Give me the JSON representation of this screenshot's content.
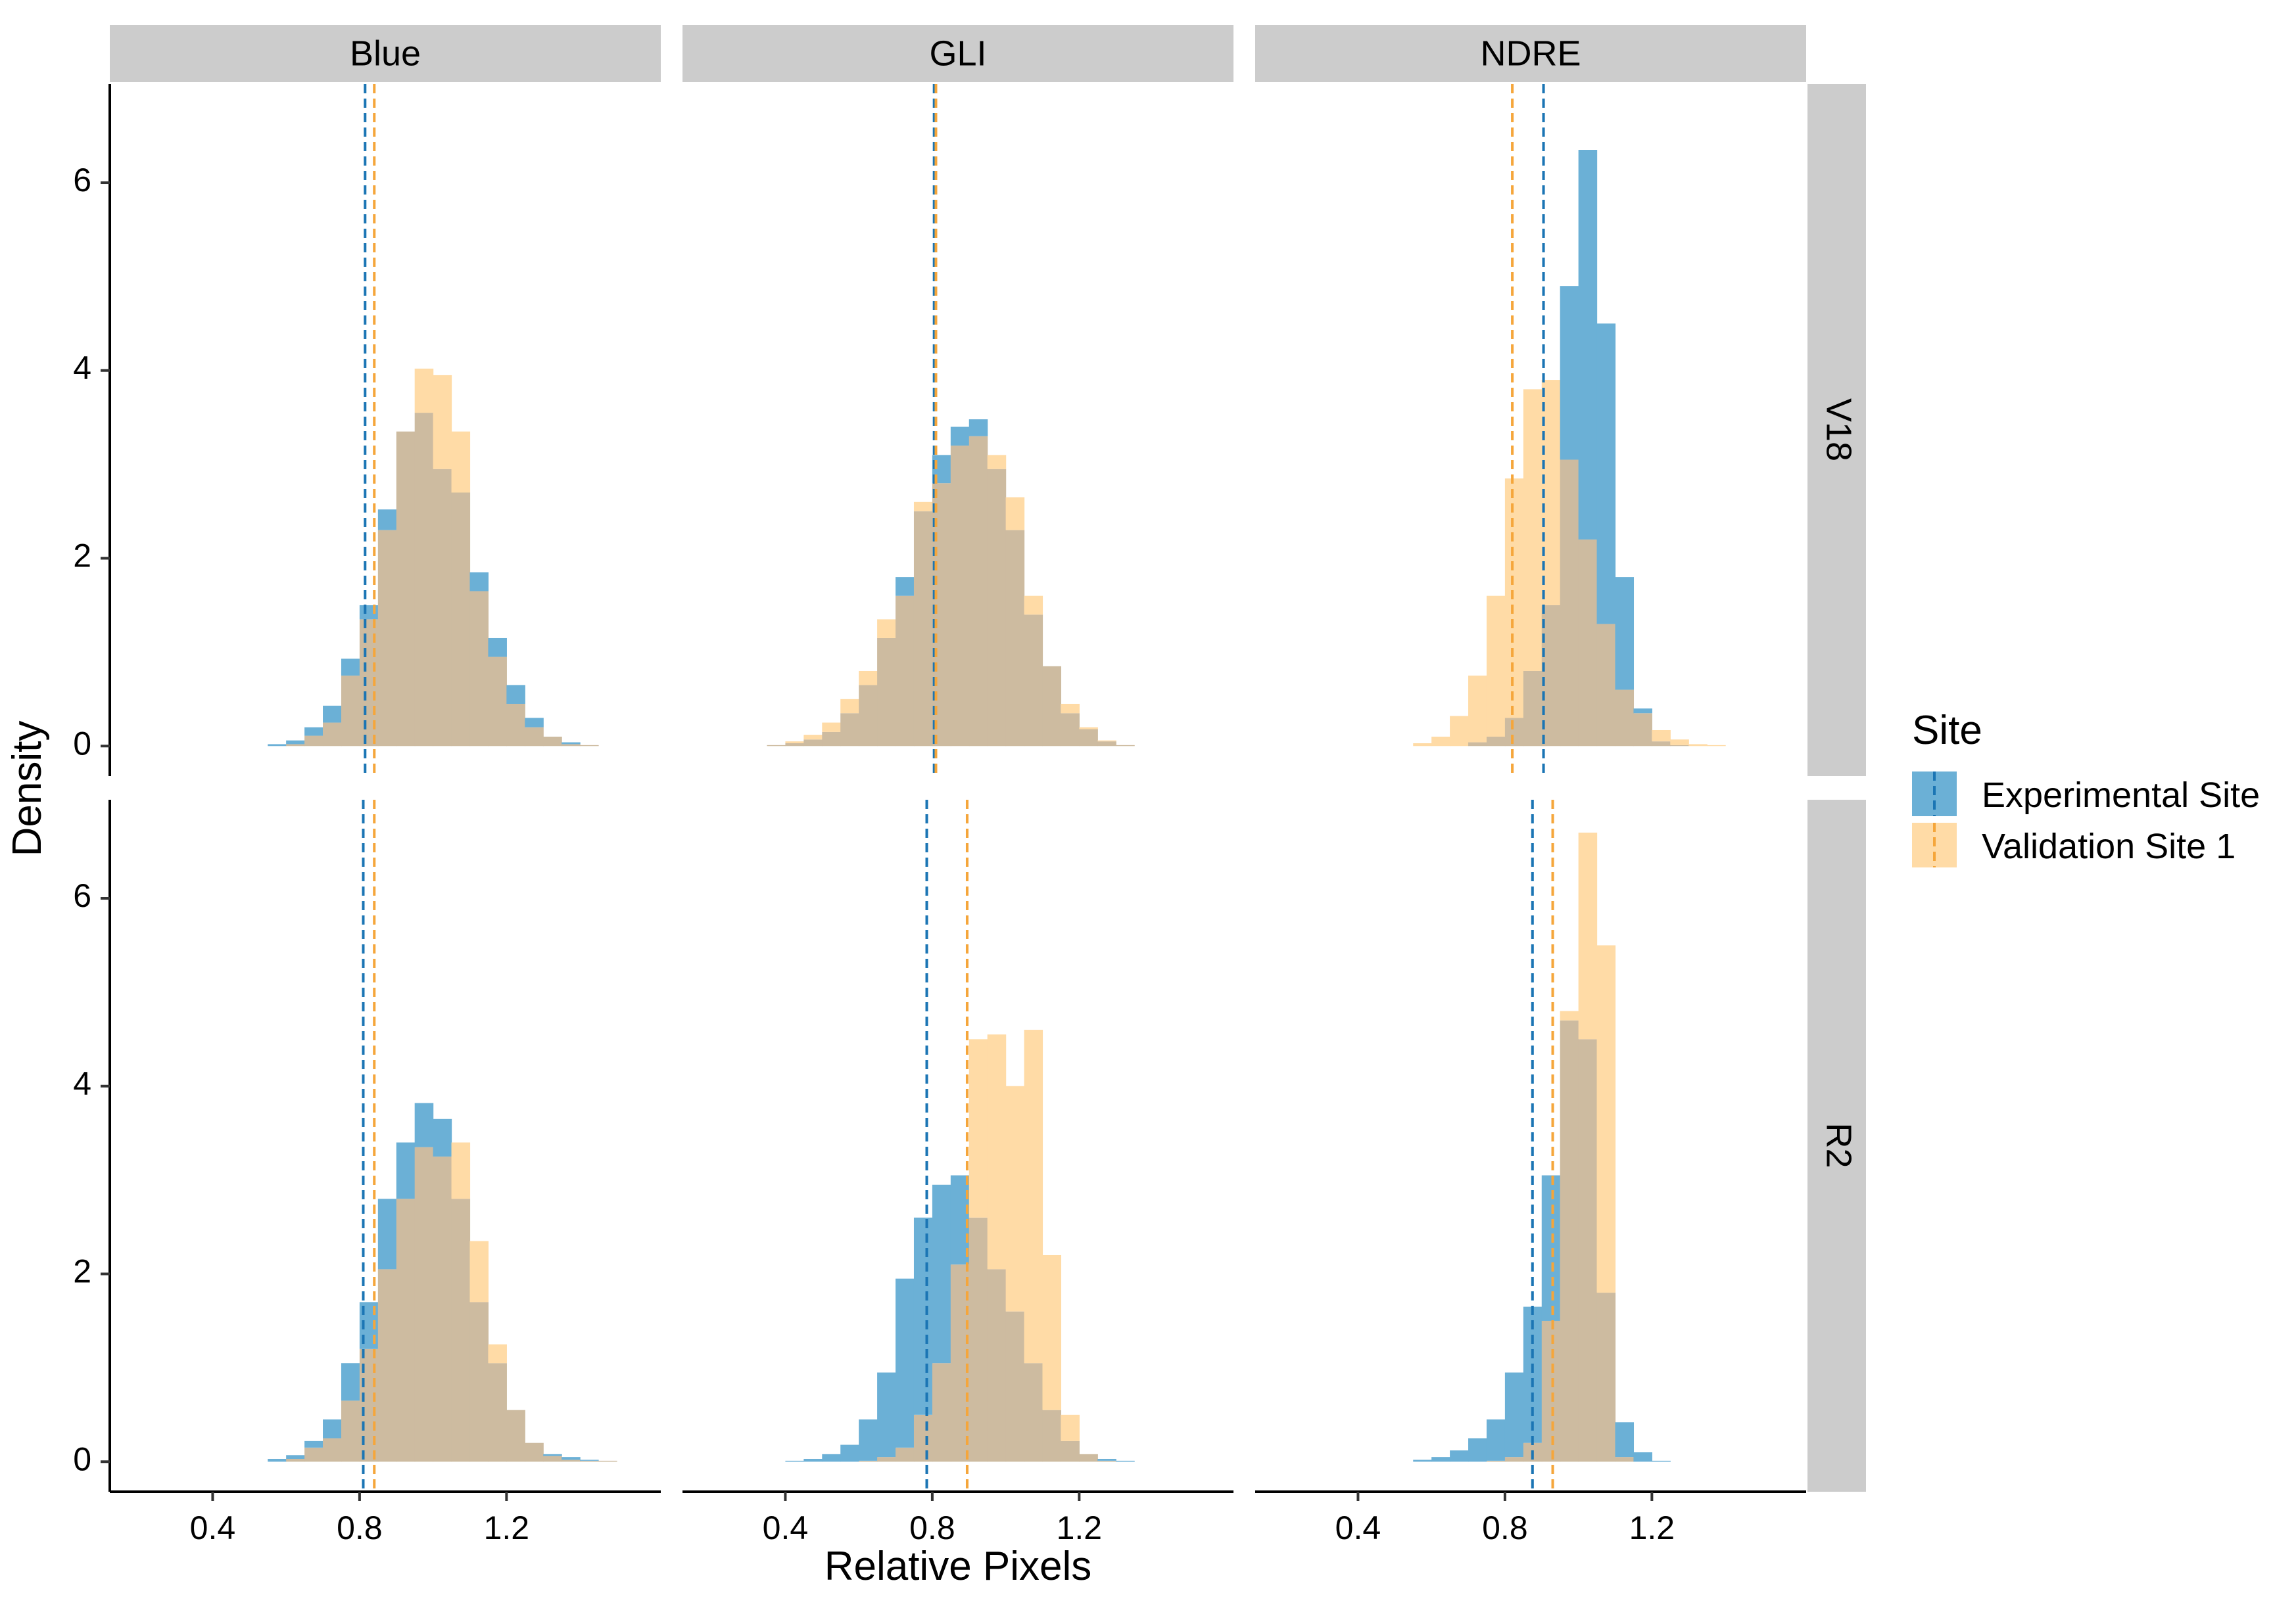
{
  "chart_data": {
    "type": "histogram",
    "title": "",
    "xlabel": "Relative Pixels",
    "ylabel": "Density",
    "xlim": [
      0.12,
      1.62
    ],
    "ylim": [
      -0.32,
      7.05
    ],
    "x_ticks": [
      0.4,
      0.8,
      1.2
    ],
    "x_tick_labels": [
      "0.4",
      "0.8",
      "1.2"
    ],
    "y_ticks": [
      0,
      2,
      4,
      6
    ],
    "y_tick_labels": [
      "0",
      "2",
      "4",
      "6"
    ],
    "grid": false,
    "bin_width": 0.05,
    "facet_columns": [
      "Blue",
      "GLI",
      "NDRE"
    ],
    "facet_rows": [
      "V18",
      "R2"
    ],
    "legend": {
      "title": "Site",
      "position": "right",
      "entries": [
        {
          "label": "Experimental Site",
          "color": "#6BB0D6",
          "line_color": "#1B75B4"
        },
        {
          "label": "Validation Site 1",
          "color": "#FFDBA6",
          "line_color": "#F5A63B"
        }
      ]
    },
    "overlap_color": "#CDBBA0",
    "panels": [
      {
        "row": "V18",
        "column": "Blue",
        "bin_start": 0.35,
        "series": [
          {
            "name": "Experimental Site",
            "mean": 0.815,
            "values": [
              0,
              0,
              0,
              0,
              0.02,
              0.06,
              0.2,
              0.43,
              0.93,
              1.5,
              2.52,
              3.35,
              3.55,
              2.95,
              2.7,
              1.85,
              1.15,
              0.65,
              0.3,
              0.1,
              0.04,
              0.01
            ]
          },
          {
            "name": "Validation Site 1",
            "mean": 0.84,
            "values": [
              0,
              0,
              0,
              0,
              0,
              0.02,
              0.11,
              0.25,
              0.75,
              1.35,
              2.3,
              3.35,
              4.02,
              3.95,
              3.35,
              1.65,
              0.95,
              0.45,
              0.2,
              0.1,
              0.02,
              0.01
            ]
          }
        ]
      },
      {
        "row": "V18",
        "column": "GLI",
        "bin_start": 0.3,
        "series": [
          {
            "name": "Experimental Site",
            "mean": 0.805,
            "values": [
              0,
              0.01,
              0.03,
              0.07,
              0.15,
              0.35,
              0.65,
              1.15,
              1.8,
              2.5,
              3.1,
              3.4,
              3.48,
              2.95,
              2.3,
              1.4,
              0.85,
              0.35,
              0.18,
              0.05,
              0.01
            ]
          },
          {
            "name": "Validation Site 1",
            "mean": 0.81,
            "values": [
              0,
              0.01,
              0.05,
              0.12,
              0.25,
              0.5,
              0.8,
              1.35,
              1.6,
              2.6,
              2.8,
              3.2,
              3.3,
              3.1,
              2.65,
              1.6,
              0.85,
              0.45,
              0.2,
              0.06,
              0.01
            ]
          }
        ]
      },
      {
        "row": "V18",
        "column": "NDRE",
        "bin_start": 0.5,
        "series": [
          {
            "name": "Experimental Site",
            "mean": 0.905,
            "values": [
              0,
              0,
              0,
              0,
              0.04,
              0.1,
              0.3,
              0.8,
              1.5,
              4.9,
              6.35,
              4.5,
              1.8,
              0.4,
              0.05,
              0.01,
              0,
              0
            ]
          },
          {
            "name": "Validation Site 1",
            "mean": 0.82,
            "values": [
              0,
              0.03,
              0.1,
              0.32,
              0.75,
              1.6,
              2.85,
              3.8,
              3.9,
              3.05,
              2.2,
              1.3,
              0.6,
              0.35,
              0.17,
              0.07,
              0.02,
              0.01
            ]
          }
        ]
      },
      {
        "row": "R2",
        "column": "Blue",
        "bin_start": 0.35,
        "series": [
          {
            "name": "Experimental Site",
            "mean": 0.81,
            "values": [
              0,
              0,
              0,
              0,
              0.03,
              0.07,
              0.22,
              0.45,
              1.05,
              1.7,
              2.8,
              3.4,
              3.82,
              3.65,
              2.8,
              1.7,
              1.05,
              0.55,
              0.2,
              0.08,
              0.05,
              0.02,
              0.01
            ]
          },
          {
            "name": "Validation Site 1",
            "mean": 0.84,
            "values": [
              0,
              0,
              0,
              0,
              0,
              0.03,
              0.15,
              0.25,
              0.65,
              1.2,
              2.05,
              2.8,
              3.35,
              3.25,
              3.4,
              2.35,
              1.25,
              0.55,
              0.2,
              0.06,
              0.02,
              0.01,
              0.01
            ]
          }
        ]
      },
      {
        "row": "R2",
        "column": "GLI",
        "bin_start": 0.4,
        "series": [
          {
            "name": "Experimental Site",
            "mean": 0.785,
            "values": [
              0.01,
              0.03,
              0.08,
              0.18,
              0.45,
              0.95,
              1.95,
              2.6,
              2.95,
              3.05,
              2.6,
              2.05,
              1.6,
              1.05,
              0.55,
              0.22,
              0.08,
              0.03,
              0.01
            ]
          },
          {
            "name": "Validation Site 1",
            "mean": 0.895,
            "values": [
              0,
              0,
              0,
              0,
              0.01,
              0.05,
              0.15,
              0.5,
              1.05,
              2.1,
              4.5,
              4.55,
              4.0,
              4.6,
              2.2,
              0.5,
              0.08,
              0.01,
              0
            ]
          }
        ]
      },
      {
        "row": "R2",
        "column": "NDRE",
        "bin_start": 0.5,
        "series": [
          {
            "name": "Experimental Site",
            "mean": 0.875,
            "values": [
              0,
              0.02,
              0.05,
              0.12,
              0.25,
              0.45,
              0.95,
              1.65,
              3.05,
              4.7,
              4.5,
              1.8,
              0.42,
              0.1,
              0.01
            ]
          },
          {
            "name": "Validation Site 1",
            "mean": 0.93,
            "values": [
              0,
              0,
              0,
              0,
              0,
              0.01,
              0.05,
              0.2,
              1.5,
              4.8,
              6.7,
              5.5,
              0.05,
              0,
              0
            ]
          }
        ]
      }
    ]
  }
}
